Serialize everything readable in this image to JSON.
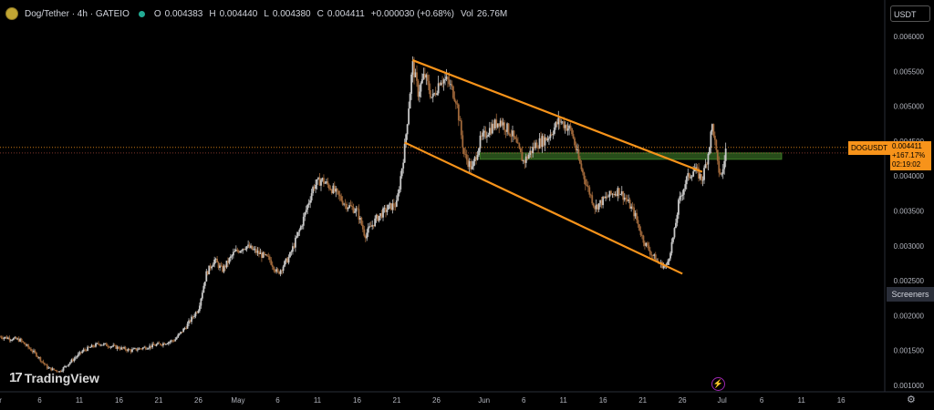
{
  "header": {
    "symbol": "Dog/Tether · 4h · GATEIO",
    "open_label": "O",
    "open": "0.004383",
    "high_label": "H",
    "high": "0.004440",
    "low_label": "L",
    "low": "0.004380",
    "close_label": "C",
    "close": "0.004411",
    "change": "+0.000030 (+0.68%)",
    "vol_label": "Vol",
    "vol": "26.76M",
    "coin_icon": "doge-coin-icon"
  },
  "currency": "USDT",
  "screeners_label": "Screeners",
  "brand": "TradingView",
  "price_tag": {
    "symbol": "DOGUSDT",
    "price": "0.004411",
    "pct": "+167.17%",
    "countdown": "02:19:02"
  },
  "colors": {
    "up": "#c8c8c8",
    "down": "#a0683a",
    "channel": "#f7931a",
    "zone": "#2e5a1e",
    "price_line": "#f7931a"
  },
  "chart_data": {
    "type": "candlestick",
    "y_ticks": [
      "0.006000",
      "0.005500",
      "0.005000",
      "0.004500",
      "0.004000",
      "0.003500",
      "0.003000",
      "0.002500",
      "0.002000",
      "0.001500",
      "0.001000"
    ],
    "ylim": [
      0.0009,
      0.0064
    ],
    "x_ticks": [
      {
        "label": "Apr",
        "x": 0.0
      },
      {
        "label": "6",
        "x": 5.5
      },
      {
        "label": "11",
        "x": 10.5
      },
      {
        "label": "16",
        "x": 15.5
      },
      {
        "label": "21",
        "x": 20.5
      },
      {
        "label": "26",
        "x": 25.5
      },
      {
        "label": "May",
        "x": 30.5
      },
      {
        "label": "6",
        "x": 35.5
      },
      {
        "label": "11",
        "x": 40.5
      },
      {
        "label": "16",
        "x": 45.5
      },
      {
        "label": "21",
        "x": 50.5
      },
      {
        "label": "26",
        "x": 55.5
      },
      {
        "label": "Jun",
        "x": 61.5
      },
      {
        "label": "6",
        "x": 66.5
      },
      {
        "label": "11",
        "x": 71.5
      },
      {
        "label": "16",
        "x": 76.5
      },
      {
        "label": "21",
        "x": 81.5
      },
      {
        "label": "26",
        "x": 86.5
      },
      {
        "label": "Jul",
        "x": 91.5
      },
      {
        "label": "6",
        "x": 96.5
      },
      {
        "label": "11",
        "x": 101.5
      },
      {
        "label": "16",
        "x": 106.5
      }
    ],
    "xlim": [
      0.5,
      112
    ],
    "series_path": [
      [
        0.5,
        0.0017
      ],
      [
        3,
        0.00165
      ],
      [
        5,
        0.00145
      ],
      [
        6.5,
        0.00125
      ],
      [
        8,
        0.0012
      ],
      [
        9.5,
        0.00135
      ],
      [
        11,
        0.0015
      ],
      [
        13,
        0.0016
      ],
      [
        15,
        0.00155
      ],
      [
        17,
        0.0015
      ],
      [
        19,
        0.00155
      ],
      [
        21,
        0.0016
      ],
      [
        22.5,
        0.00165
      ],
      [
        24,
        0.00185
      ],
      [
        25.5,
        0.0021
      ],
      [
        26.5,
        0.0026
      ],
      [
        27.5,
        0.0028
      ],
      [
        28.5,
        0.00265
      ],
      [
        30,
        0.0029
      ],
      [
        31.5,
        0.003
      ],
      [
        33,
        0.0029
      ],
      [
        34.5,
        0.0028
      ],
      [
        35.5,
        0.0026
      ],
      [
        37,
        0.00285
      ],
      [
        38.5,
        0.0033
      ],
      [
        40,
        0.00385
      ],
      [
        41,
        0.00395
      ],
      [
        42.5,
        0.0038
      ],
      [
        44,
        0.0036
      ],
      [
        45.5,
        0.0035
      ],
      [
        46.5,
        0.00315
      ],
      [
        48,
        0.0034
      ],
      [
        49.5,
        0.00355
      ],
      [
        50.5,
        0.0036
      ],
      [
        51.5,
        0.0044
      ],
      [
        52.5,
        0.0056
      ],
      [
        53.2,
        0.0052
      ],
      [
        54,
        0.00545
      ],
      [
        55,
        0.0051
      ],
      [
        56,
        0.0054
      ],
      [
        57,
        0.00535
      ],
      [
        58,
        0.0051
      ],
      [
        59,
        0.0043
      ],
      [
        60,
        0.0041
      ],
      [
        61,
        0.0045
      ],
      [
        62,
        0.00465
      ],
      [
        63.5,
        0.0048
      ],
      [
        65,
        0.0046
      ],
      [
        66.5,
        0.0042
      ],
      [
        68,
        0.00445
      ],
      [
        69.5,
        0.00455
      ],
      [
        71,
        0.0048
      ],
      [
        72.5,
        0.00465
      ],
      [
        73.5,
        0.0042
      ],
      [
        74.5,
        0.00385
      ],
      [
        75.5,
        0.00355
      ],
      [
        77,
        0.0037
      ],
      [
        78.5,
        0.0038
      ],
      [
        79.5,
        0.00365
      ],
      [
        80.5,
        0.00345
      ],
      [
        81.5,
        0.0031
      ],
      [
        82.5,
        0.0029
      ],
      [
        83.5,
        0.00275
      ],
      [
        84.5,
        0.0027
      ],
      [
        85.5,
        0.0032
      ],
      [
        86,
        0.0036
      ],
      [
        87,
        0.00395
      ],
      [
        88,
        0.0041
      ],
      [
        89,
        0.00395
      ],
      [
        89.7,
        0.0043
      ],
      [
        90.3,
        0.00475
      ],
      [
        91,
        0.0041
      ],
      [
        91.5,
        0.004
      ],
      [
        92,
        0.00441
      ]
    ],
    "channel_upper": [
      [
        52.5,
        0.00566
      ],
      [
        89.0,
        0.00406
      ]
    ],
    "channel_lower": [
      [
        51.5,
        0.00448
      ],
      [
        86.5,
        0.0026
      ]
    ],
    "zone": {
      "x": [
        61.0,
        99.0
      ],
      "y": [
        0.00424,
        0.00433
      ]
    },
    "last_price": 0.004411,
    "dotted_line_price": 0.00433
  }
}
